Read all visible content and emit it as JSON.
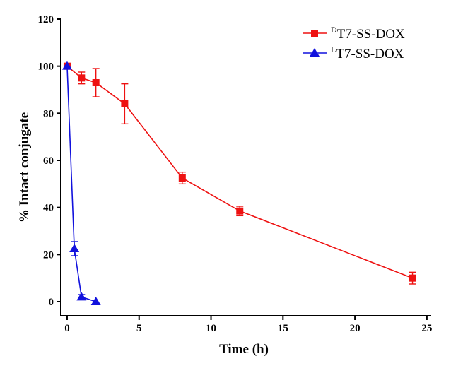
{
  "chart_data": {
    "type": "line",
    "xlabel": "Time (h)",
    "ylabel": "% Intact conjugate",
    "xlim": [
      -0.44,
      25.3
    ],
    "ylim": [
      -6,
      120
    ],
    "xticks": [
      0,
      5,
      10,
      15,
      20,
      25
    ],
    "yticks": [
      0,
      20,
      40,
      60,
      80,
      100,
      120
    ],
    "grid": false,
    "legend_position": "top-right",
    "series": [
      {
        "name": "DT7-SS-DOX",
        "name_sup": "D",
        "name_main": "T7-SS-DOX",
        "color": "#ee1111",
        "marker": "square",
        "x": [
          0,
          1,
          2,
          4,
          8,
          12,
          24
        ],
        "y": [
          100,
          95,
          93,
          84,
          52.5,
          38.5,
          10
        ],
        "err": [
          0,
          2.5,
          6,
          8.5,
          2.5,
          2,
          2.5
        ]
      },
      {
        "name": "LT7-SS-DOX",
        "name_sup": "L",
        "name_main": "T7-SS-DOX",
        "color": "#1111dd",
        "marker": "triangle",
        "x": [
          0,
          0.5,
          1,
          2
        ],
        "y": [
          100,
          22.5,
          2,
          0
        ],
        "err": [
          0,
          3,
          1,
          0
        ]
      }
    ]
  }
}
